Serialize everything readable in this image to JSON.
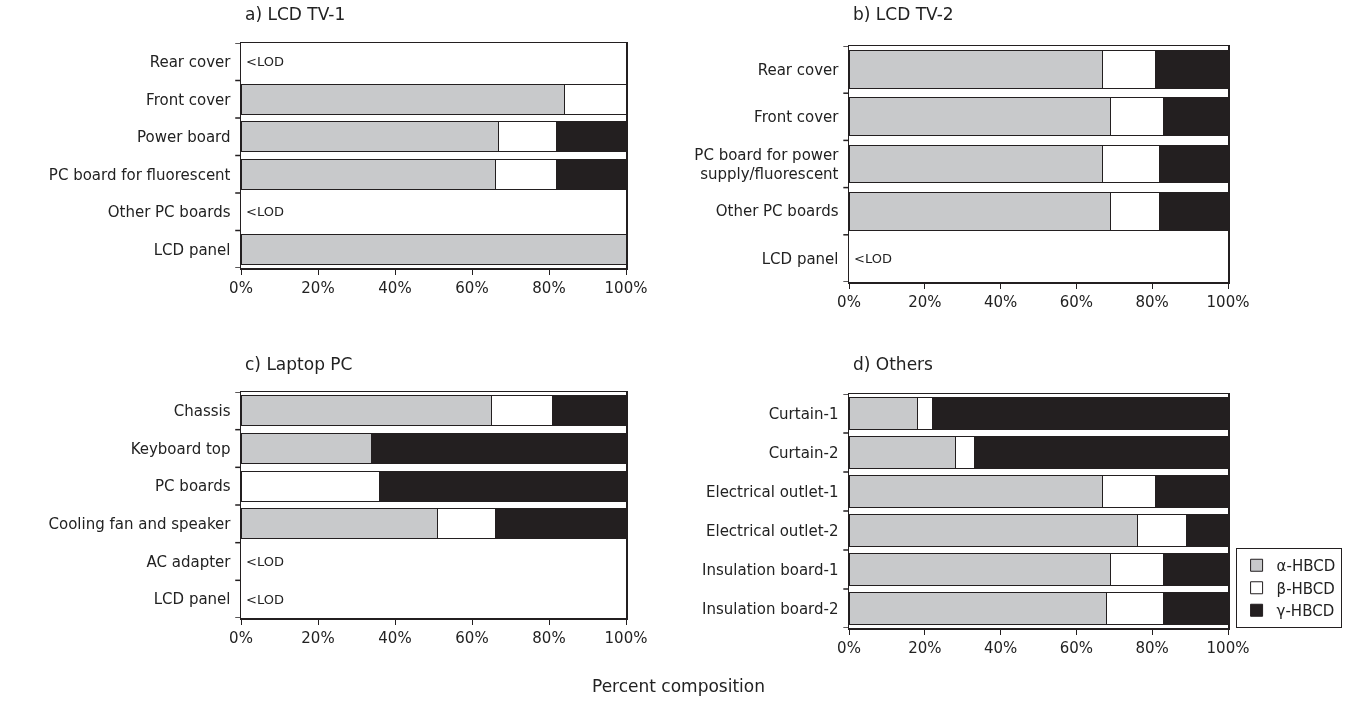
{
  "chart_data": [
    {
      "type": "bar",
      "orientation": "horizontal",
      "stacked": true,
      "title": "a) LCD TV-1",
      "categories": [
        "Rear cover",
        "Front cover",
        "Power board",
        "PC board for fluorescent",
        "Other PC boards",
        "LCD panel"
      ],
      "series": [
        {
          "color": "#c8c9cb",
          "values": [
            null,
            84,
            67,
            66,
            null,
            100
          ]
        },
        {
          "color": "#ffffff",
          "values": [
            null,
            16,
            15,
            16,
            null,
            0
          ]
        },
        {
          "color": "#231f20",
          "values": [
            null,
            0,
            18,
            18,
            null,
            0
          ]
        }
      ],
      "xlim": [
        0,
        100
      ],
      "xticks": [
        {
          "value": 0,
          "label": "0%"
        },
        {
          "value": 20,
          "label": "20%"
        },
        {
          "value": 40,
          "label": "40%"
        },
        {
          "value": 60,
          "label": "60%"
        },
        {
          "value": 80,
          "label": "80%"
        },
        {
          "value": 100,
          "label": "100%"
        }
      ],
      "annotations": [
        "<LOD",
        "<LOD"
      ],
      "grid": false,
      "legend": false
    },
    {
      "type": "bar",
      "orientation": "horizontal",
      "stacked": true,
      "title": "b) LCD TV-2",
      "categories": [
        "Rear cover",
        "Front cover",
        "PC board for power supply/fluorescent",
        "Other PC boards",
        "LCD panel"
      ],
      "series": [
        {
          "color": "#c8c9cb",
          "values": [
            67,
            69,
            67,
            69,
            null
          ]
        },
        {
          "color": "#ffffff",
          "values": [
            14,
            14,
            15,
            13,
            null
          ]
        },
        {
          "color": "#231f20",
          "values": [
            19,
            17,
            18,
            18,
            null
          ]
        }
      ],
      "xlim": [
        0,
        100
      ],
      "xticks": [
        {
          "value": 0,
          "label": "0%"
        },
        {
          "value": 20,
          "label": "20%"
        },
        {
          "value": 40,
          "label": "40%"
        },
        {
          "value": 60,
          "label": "60%"
        },
        {
          "value": 80,
          "label": "80%"
        },
        {
          "value": 100,
          "label": "100%"
        }
      ],
      "annotations": [
        "<LOD"
      ],
      "grid": false,
      "legend": false
    },
    {
      "type": "bar",
      "orientation": "horizontal",
      "stacked": true,
      "title": "c) Laptop PC",
      "xlabel": "Percent composition",
      "categories": [
        "Chassis",
        "Keyboard top",
        "PC boards",
        "Cooling fan and speaker",
        "AC adapter",
        "LCD panel"
      ],
      "series": [
        {
          "color": "#c8c9cb",
          "values": [
            65,
            34,
            0,
            51,
            null,
            null
          ]
        },
        {
          "color": "#ffffff",
          "values": [
            16,
            0,
            36,
            15,
            null,
            null
          ]
        },
        {
          "color": "#231f20",
          "values": [
            19,
            66,
            64,
            34,
            null,
            null
          ]
        }
      ],
      "xlim": [
        0,
        100
      ],
      "xticks": [
        {
          "value": 0,
          "label": "0%"
        },
        {
          "value": 20,
          "label": "20%"
        },
        {
          "value": 40,
          "label": "40%"
        },
        {
          "value": 60,
          "label": "60%"
        },
        {
          "value": 80,
          "label": "80%"
        },
        {
          "value": 100,
          "label": "100%"
        }
      ],
      "annotations": [
        "<LOD",
        "<LOD"
      ],
      "grid": false,
      "legend": false
    },
    {
      "type": "bar",
      "orientation": "horizontal",
      "stacked": true,
      "title": "d) Others",
      "categories": [
        "Curtain-1",
        "Curtain-2",
        "Electrical outlet-1",
        "Electrical outlet-2",
        "Insulation board-1",
        "Insulation board-2"
      ],
      "series": [
        {
          "name": "α-HBCD",
          "color": "#c8c9cb",
          "values": [
            18,
            28,
            67,
            76,
            69,
            68
          ]
        },
        {
          "name": "β-HBCD",
          "color": "#ffffff",
          "values": [
            4,
            5,
            14,
            13,
            14,
            15
          ]
        },
        {
          "name": "γ-HBCD",
          "color": "#231f20",
          "values": [
            78,
            67,
            19,
            11,
            17,
            17
          ]
        }
      ],
      "xlim": [
        0,
        100
      ],
      "xticks": [
        {
          "value": 0,
          "label": "0%"
        },
        {
          "value": 20,
          "label": "20%"
        },
        {
          "value": 40,
          "label": "40%"
        },
        {
          "value": 60,
          "label": "60%"
        },
        {
          "value": 80,
          "label": "80%"
        },
        {
          "value": 100,
          "label": "100%"
        }
      ],
      "grid": false,
      "legend": "bottom right"
    }
  ]
}
